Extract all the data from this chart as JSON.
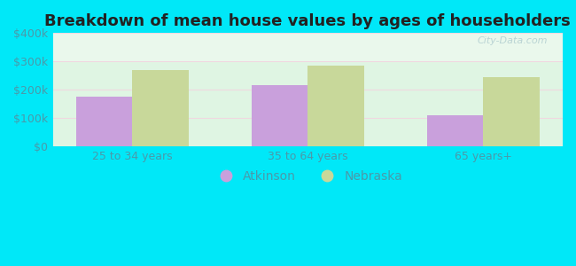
{
  "title": "Breakdown of mean house values by ages of householders",
  "categories": [
    "25 to 34 years",
    "35 to 64 years",
    "65 years+"
  ],
  "atkinson_values": [
    175000,
    215000,
    110000
  ],
  "nebraska_values": [
    270000,
    285000,
    245000
  ],
  "atkinson_color": "#c9a0dc",
  "nebraska_color": "#c8d89a",
  "ylim": [
    0,
    400000
  ],
  "yticks": [
    0,
    100000,
    200000,
    300000,
    400000
  ],
  "ytick_labels": [
    "$0",
    "$100k",
    "$200k",
    "$300k",
    "$400k"
  ],
  "background_outer": "#00e8f8",
  "background_inner": "#dff5e3",
  "bar_width": 0.32,
  "legend_labels": [
    "Atkinson",
    "Nebraska"
  ],
  "watermark": "City-Data.com",
  "title_fontsize": 13,
  "tick_fontsize": 9,
  "legend_fontsize": 10,
  "grid_color": "#e0c8d0",
  "tick_color": "#4a9aaa"
}
